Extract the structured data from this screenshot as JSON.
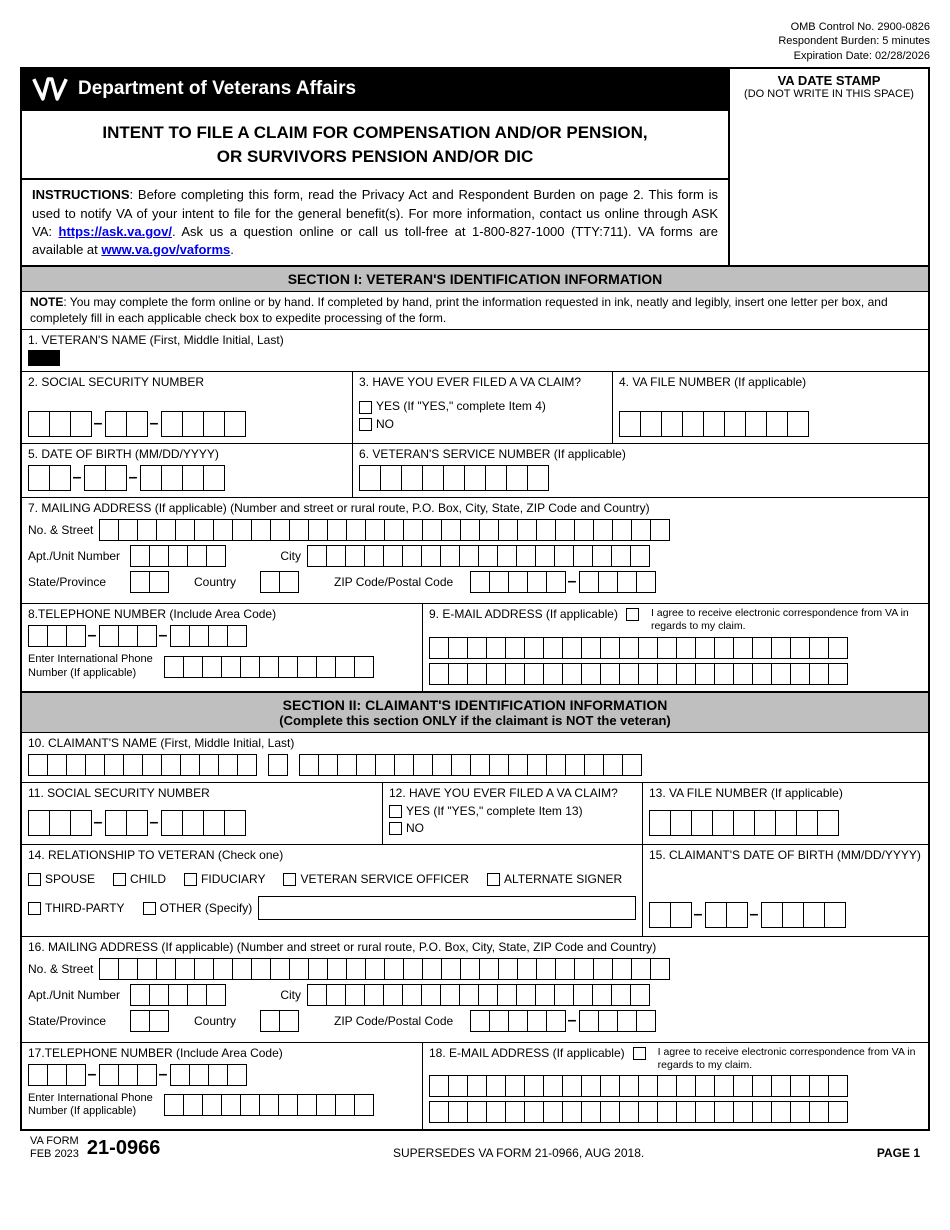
{
  "meta": {
    "omb": "OMB Control No. 2900-0826",
    "burden": "Respondent Burden: 5 minutes",
    "expiration": "Expiration Date: 02/28/2026"
  },
  "header": {
    "dept": "Department of Veterans Affairs",
    "title1": "INTENT TO FILE A CLAIM FOR COMPENSATION AND/OR PENSION,",
    "title2": "OR SURVIVORS PENSION AND/OR DIC",
    "datestamp_title": "VA DATE STAMP",
    "datestamp_sub": "(DO NOT WRITE IN THIS SPACE)"
  },
  "instructions": {
    "label": "INSTRUCTIONS",
    "text1": ": Before completing this form, read the Privacy Act and Respondent Burden on page 2. This form is used to notify VA of your intent to file for the general benefit(s). For more information, contact us online through ASK VA: ",
    "link1": "https://ask.va.gov/",
    "text2": ". Ask us a question online or call us toll-free at 1-800-827-1000 (TTY:711). VA forms are available at ",
    "link2": "www.va.gov/vaforms",
    "text3": "."
  },
  "section1": {
    "header": "SECTION I: VETERAN'S IDENTIFICATION INFORMATION",
    "note_label": "NOTE",
    "note_text": ": You may complete the form online or by hand. If completed by hand, print the information requested in ink, neatly and legibly, insert one letter per box, and completely fill in each applicable check box to expedite processing of the form.",
    "f1": "1. VETERAN'S NAME (First, Middle Initial, Last)",
    "f2": "2.  SOCIAL SECURITY NUMBER",
    "f3": "3. HAVE YOU EVER FILED A VA CLAIM?",
    "f3_yes": "YES (If \"YES,\" complete Item 4)",
    "f3_no": "NO",
    "f4": "4. VA FILE NUMBER (If applicable)",
    "f5": "5.  DATE OF BIRTH (MM/DD/YYYY)",
    "f6": "6.  VETERAN'S SERVICE NUMBER (If applicable)",
    "f7": "7. MAILING ADDRESS (If applicable) (Number and street or rural route, P.O. Box, City, State, ZIP Code and Country)",
    "addr_no_street": "No. & Street",
    "addr_apt": "Apt./Unit Number",
    "addr_city": "City",
    "addr_state": "State/Province",
    "addr_country": "Country",
    "addr_zip": "ZIP Code/Postal Code",
    "f8": "8.TELEPHONE NUMBER (Include Area Code)",
    "f8_intl": "Enter International Phone Number (If applicable)",
    "f9": "9. E-MAIL ADDRESS (If applicable)",
    "agree": "I agree to receive electronic correspondence from VA in regards to my claim."
  },
  "section2": {
    "header": "SECTION II: CLAIMANT'S IDENTIFICATION INFORMATION",
    "header_sub": "(Complete this section ONLY if the claimant is NOT the veteran)",
    "f10": "10.  CLAIMANT'S NAME (First, Middle Initial, Last)",
    "f11": "11.  SOCIAL SECURITY NUMBER",
    "f12": "12. HAVE YOU EVER FILED A VA CLAIM?",
    "f12_yes": "YES (If \"YES,\" complete Item 13)",
    "f12_no": "NO",
    "f13": "13. VA FILE NUMBER (If applicable)",
    "f14": "14.  RELATIONSHIP TO VETERAN (Check one)",
    "rel_spouse": "SPOUSE",
    "rel_child": "CHILD",
    "rel_fiduciary": "FIDUCIARY",
    "rel_vso": "VETERAN SERVICE OFFICER",
    "rel_alt": "ALTERNATE SIGNER",
    "rel_third": "THIRD-PARTY",
    "rel_other": "OTHER  (Specify)",
    "f15": "15.  CLAIMANT'S DATE OF BIRTH (MM/DD/YYYY)",
    "f16": "16.  MAILING ADDRESS (If applicable) (Number and street or rural route, P.O. Box, City, State, ZIP Code and Country)",
    "f17": "17.TELEPHONE NUMBER (Include Area Code)",
    "f18": "18. E-MAIL ADDRESS (If applicable)"
  },
  "footer": {
    "va_form": "VA FORM",
    "date": "FEB 2023",
    "number": "21-0966",
    "supersedes": "SUPERSEDES VA FORM 21-0966, AUG 2018.",
    "page": "PAGE 1"
  },
  "colors": {
    "section_bg": "#bfbfbf",
    "link": "#0000EE"
  }
}
